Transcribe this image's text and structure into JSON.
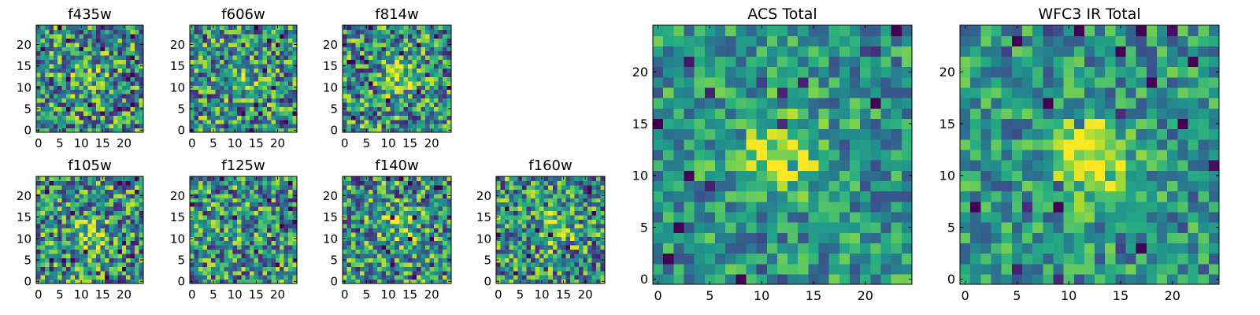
{
  "chart_data": [
    {
      "type": "heatmap",
      "title": "f435w",
      "xlim": [
        0,
        24
      ],
      "ylim": [
        0,
        24
      ],
      "xticks": [
        "0",
        "5",
        "10",
        "15",
        "20"
      ],
      "yticks": [
        "0",
        "5",
        "10",
        "15",
        "20"
      ],
      "colormap": "viridis",
      "grid_size": [
        25,
        25
      ],
      "blob": {
        "x": 12,
        "y": 13,
        "strength": 0.15
      }
    },
    {
      "type": "heatmap",
      "title": "f606w",
      "xlim": [
        0,
        24
      ],
      "ylim": [
        0,
        24
      ],
      "xticks": [
        "0",
        "5",
        "10",
        "15",
        "20"
      ],
      "yticks": [
        "0",
        "5",
        "10",
        "15",
        "20"
      ],
      "colormap": "viridis",
      "grid_size": [
        25,
        25
      ],
      "blob": {
        "x": 12,
        "y": 12,
        "strength": 0.3
      }
    },
    {
      "type": "heatmap",
      "title": "f814w",
      "xlim": [
        0,
        24
      ],
      "ylim": [
        0,
        24
      ],
      "xticks": [
        "0",
        "5",
        "10",
        "15",
        "20"
      ],
      "yticks": [
        "0",
        "5",
        "10",
        "15",
        "20"
      ],
      "colormap": "viridis",
      "grid_size": [
        25,
        25
      ],
      "blob": {
        "x": 13,
        "y": 12,
        "strength": 0.35
      }
    },
    {
      "type": "heatmap",
      "title": "f105w",
      "xlim": [
        0,
        24
      ],
      "ylim": [
        0,
        24
      ],
      "xticks": [
        "0",
        "5",
        "10",
        "15",
        "20"
      ],
      "yticks": [
        "0",
        "5",
        "10",
        "15",
        "20"
      ],
      "colormap": "viridis",
      "grid_size": [
        25,
        25
      ],
      "blob": {
        "x": 12,
        "y": 11,
        "strength": 0.35
      }
    },
    {
      "type": "heatmap",
      "title": "f125w",
      "xlim": [
        0,
        24
      ],
      "ylim": [
        0,
        24
      ],
      "xticks": [
        "0",
        "5",
        "10",
        "15",
        "20"
      ],
      "yticks": [
        "0",
        "5",
        "10",
        "15",
        "20"
      ],
      "colormap": "viridis",
      "grid_size": [
        25,
        25
      ],
      "blob": {
        "x": 12,
        "y": 12,
        "strength": 0.1
      }
    },
    {
      "type": "heatmap",
      "title": "f140w",
      "xlim": [
        0,
        24
      ],
      "ylim": [
        0,
        24
      ],
      "xticks": [
        "0",
        "5",
        "10",
        "15",
        "20"
      ],
      "yticks": [
        "0",
        "5",
        "10",
        "15",
        "20"
      ],
      "colormap": "viridis",
      "grid_size": [
        25,
        25
      ],
      "blob": {
        "x": 12,
        "y": 13,
        "strength": 0.35
      }
    },
    {
      "type": "heatmap",
      "title": "f160w",
      "xlim": [
        0,
        24
      ],
      "ylim": [
        0,
        24
      ],
      "xticks": [
        "0",
        "5",
        "10",
        "15",
        "20"
      ],
      "yticks": [
        "0",
        "5",
        "10",
        "15",
        "20"
      ],
      "colormap": "viridis",
      "grid_size": [
        25,
        25
      ],
      "blob": {
        "x": 13,
        "y": 12,
        "strength": 0.35
      }
    },
    {
      "type": "heatmap",
      "title": "ACS Total",
      "xlim": [
        0,
        24
      ],
      "ylim": [
        0,
        24
      ],
      "xticks": [
        "0",
        "5",
        "10",
        "15",
        "20"
      ],
      "yticks": [
        "0",
        "5",
        "10",
        "15",
        "20"
      ],
      "colormap": "viridis",
      "grid_size": [
        25,
        25
      ],
      "blob": {
        "x": 12,
        "y": 12,
        "strength": 0.45
      }
    },
    {
      "type": "heatmap",
      "title": "WFC3 IR Total",
      "xlim": [
        0,
        24
      ],
      "ylim": [
        0,
        24
      ],
      "xticks": [
        "0",
        "5",
        "10",
        "15",
        "20"
      ],
      "yticks": [
        "0",
        "5",
        "10",
        "15",
        "20"
      ],
      "colormap": "viridis",
      "grid_size": [
        25,
        25
      ],
      "blob": {
        "x": 12,
        "y": 12,
        "strength": 0.55
      }
    }
  ]
}
